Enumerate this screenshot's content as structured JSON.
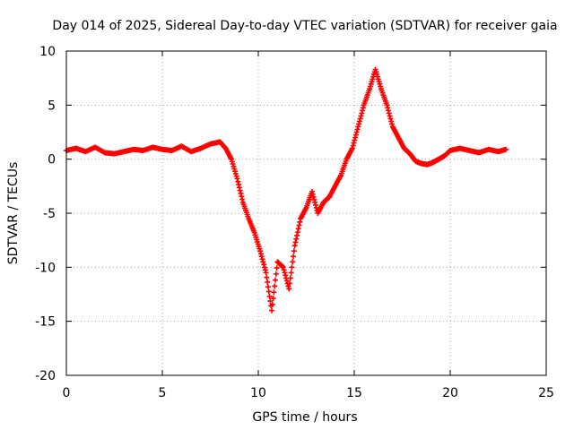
{
  "chart_data": {
    "type": "scatter",
    "title": "Day 014 of 2025, Sidereal Day-to-day VTEC variation (SDTVAR) for receiver gaia",
    "xlabel": "GPS time / hours",
    "ylabel": "SDTVAR / TECUs",
    "xlim": [
      0,
      25
    ],
    "ylim": [
      -20,
      10
    ],
    "xticks": [
      0,
      5,
      10,
      15,
      20,
      25
    ],
    "xtick_labels": [
      "0",
      "5",
      "10",
      "15",
      "20",
      "25"
    ],
    "yticks": [
      -20,
      -15,
      -10,
      -5,
      0,
      5,
      10
    ],
    "ytick_labels": [
      "-20",
      "-15",
      "-10",
      "-5",
      "0",
      "5",
      "10"
    ],
    "grid": true,
    "marker": "+",
    "series": [
      {
        "name": "SDTVAR",
        "color": "#ff0000",
        "x": [
          0.0,
          0.5,
          1.0,
          1.5,
          2.0,
          2.5,
          3.0,
          3.5,
          4.0,
          4.5,
          5.0,
          5.5,
          6.0,
          6.5,
          7.0,
          7.5,
          8.0,
          8.3,
          8.6,
          8.9,
          9.2,
          9.5,
          9.8,
          10.1,
          10.4,
          10.7,
          11.0,
          11.3,
          11.6,
          11.9,
          12.2,
          12.5,
          12.8,
          13.1,
          13.4,
          13.7,
          14.0,
          14.3,
          14.6,
          14.9,
          15.2,
          15.5,
          15.8,
          16.1,
          16.4,
          16.7,
          17.0,
          17.3,
          17.6,
          17.9,
          18.2,
          18.5,
          18.8,
          19.1,
          19.4,
          19.7,
          20.0,
          20.5,
          21.0,
          21.5,
          22.0,
          22.5,
          22.9
        ],
        "y": [
          0.8,
          1.0,
          0.7,
          1.1,
          0.6,
          0.5,
          0.7,
          0.9,
          0.8,
          1.1,
          0.9,
          0.8,
          1.2,
          0.7,
          1.0,
          1.4,
          1.6,
          1.0,
          0.0,
          -1.8,
          -4.0,
          -5.5,
          -6.8,
          -8.5,
          -10.5,
          -14.0,
          -9.5,
          -10.0,
          -12.0,
          -8.0,
          -5.5,
          -4.5,
          -3.0,
          -5.0,
          -4.0,
          -3.5,
          -2.5,
          -1.5,
          0.0,
          1.0,
          3.0,
          5.0,
          6.5,
          8.3,
          6.5,
          5.0,
          3.0,
          2.0,
          1.0,
          0.5,
          -0.2,
          -0.4,
          -0.5,
          -0.3,
          0.0,
          0.3,
          0.8,
          1.0,
          0.8,
          0.6,
          0.9,
          0.7,
          0.9
        ]
      }
    ]
  }
}
